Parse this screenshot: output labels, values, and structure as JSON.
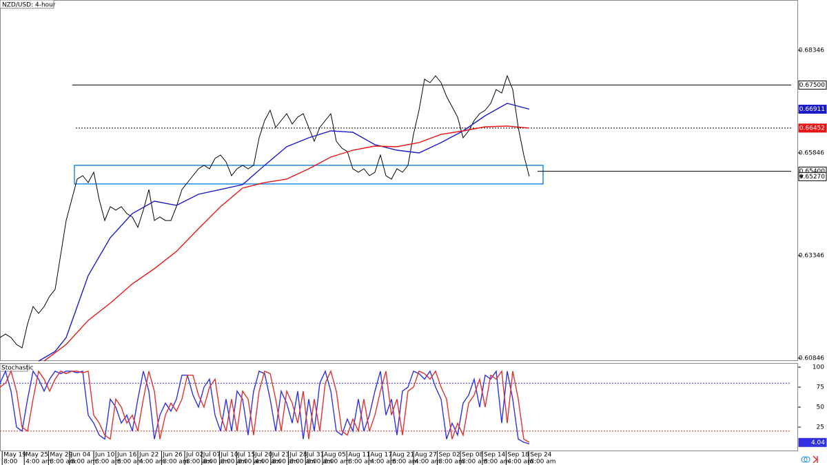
{
  "chart_data": [
    {
      "type": "line",
      "title": "NZD/USD: 4-hour",
      "xlim": [
        0,
        144.75
      ],
      "ylim": [
        0.60779,
        0.69571
      ],
      "yticks": [
        0.60846,
        0.63346,
        0.65846,
        0.68346
      ],
      "series": [
        {
          "name": "NZD/USD",
          "color": "#000000",
          "last_label": "0.65270",
          "values": [
            0.61349,
            0.61433,
            0.61349,
            0.61181,
            0.61097,
            0.61684,
            0.62104,
            0.61936,
            0.62104,
            0.62356,
            0.62523,
            0.63362,
            0.64201,
            0.64705,
            0.65208,
            0.65292,
            0.65124,
            0.65376,
            0.64705,
            0.64201,
            0.64537,
            0.64453,
            0.64537,
            0.64369,
            0.64285,
            0.64034,
            0.64453,
            0.64956,
            0.64201,
            0.64285,
            0.64201,
            0.64201,
            0.64537,
            0.64956,
            0.65124,
            0.65292,
            0.6546,
            0.65544,
            0.6546,
            0.65712,
            0.65795,
            0.65628,
            0.65292,
            0.6546,
            0.65544,
            0.6546,
            0.65544,
            0.66215,
            0.66634,
            0.66886,
            0.66467,
            0.66634,
            0.66802,
            0.66551,
            0.66718,
            0.66802,
            0.66467,
            0.66131,
            0.66467,
            0.66634,
            0.66802,
            0.66131,
            0.65963,
            0.65879,
            0.6546,
            0.65376,
            0.6546,
            0.65292,
            0.65376,
            0.65795,
            0.65292,
            0.65208,
            0.6546,
            0.65376,
            0.65544,
            0.66299,
            0.66886,
            0.67641,
            0.67557,
            0.67725,
            0.67557,
            0.67222,
            0.6697,
            0.66718,
            0.66215,
            0.66383,
            0.66634,
            0.66802,
            0.66886,
            0.67054,
            0.6739,
            0.67306,
            0.67725,
            0.6739,
            0.66467,
            0.65795,
            0.6527
          ]
        },
        {
          "color": "#1a1ac8",
          "x": [
            7,
            10,
            12,
            16,
            20,
            24,
            28,
            32,
            36,
            40,
            44,
            48,
            52,
            56,
            60,
            64,
            68,
            72,
            76,
            80,
            84,
            88,
            92,
            96
          ],
          "values": [
            0.60778,
            0.61013,
            0.61349,
            0.62859,
            0.63782,
            0.64369,
            0.64671,
            0.6457,
            0.64839,
            0.64956,
            0.65074,
            0.65544,
            0.65997,
            0.66215,
            0.66383,
            0.66349,
            0.66047,
            0.65913,
            0.65846,
            0.66097,
            0.66383,
            0.66752,
            0.67054,
            0.66911
          ]
        },
        {
          "color": "#e81414",
          "x": [
            8,
            12,
            16,
            20,
            24,
            28,
            32,
            36,
            40,
            44,
            48,
            52,
            56,
            60,
            64,
            68,
            72,
            76,
            80,
            84,
            88,
            92,
            96
          ],
          "values": [
            0.60778,
            0.61181,
            0.61768,
            0.62188,
            0.62658,
            0.63027,
            0.63446,
            0.64,
            0.64537,
            0.6499,
            0.65124,
            0.65208,
            0.6546,
            0.65745,
            0.65913,
            0.66014,
            0.65997,
            0.66097,
            0.66299,
            0.66383,
            0.66483,
            0.665,
            0.66452
          ]
        }
      ],
      "levels": [
        {
          "value": 0.675,
          "label": "0.67500",
          "from": 13.1,
          "style": "solid"
        },
        {
          "value": 0.66452,
          "from": 13.75,
          "style": "dotted"
        },
        {
          "value": 0.654,
          "label": "0.65400",
          "from": 97.5,
          "style": "solid"
        }
      ],
      "zone": {
        "x": [
          13.5,
          98.5
        ],
        "y": [
          0.65091,
          0.65544
        ],
        "color": "#1e88e5"
      }
    },
    {
      "type": "line",
      "title": "Stochastic",
      "xlim": [
        0,
        144.75
      ],
      "ylim": [
        -5.2,
        105.2
      ],
      "yticks": [
        25,
        50,
        75,
        100
      ],
      "levels": [
        {
          "value": 80,
          "color": "#3030c0"
        },
        {
          "value": 20,
          "color": "#e03030"
        }
      ],
      "xticks": [
        {
          "value": 0.4,
          "label": "May 19"
        },
        {
          "value": 4.4,
          "label": "May 25"
        },
        {
          "value": 8.8,
          "label": "May 29"
        },
        {
          "value": 12.6,
          "label": "Jun 04"
        },
        {
          "value": 17,
          "label": "Jun 10"
        },
        {
          "value": 21,
          "label": "Jun 16"
        },
        {
          "value": 25,
          "label": "Jun 22"
        },
        {
          "value": 29.3,
          "label": "Jun 26"
        },
        {
          "value": 33.5,
          "label": "Jul 02"
        },
        {
          "value": 36.6,
          "label": "Jul 07"
        },
        {
          "value": 39.8,
          "label": "Jul 10"
        },
        {
          "value": 42.9,
          "label": "Jul 15"
        },
        {
          "value": 46,
          "label": "Jul 20"
        },
        {
          "value": 49.1,
          "label": "Jul 23"
        },
        {
          "value": 52.3,
          "label": "Jul 28"
        },
        {
          "value": 55.4,
          "label": "Jul 31"
        },
        {
          "value": 58.5,
          "label": "Aug 05"
        },
        {
          "value": 62.9,
          "label": "Aug 11"
        },
        {
          "value": 66.9,
          "label": "Aug 17"
        },
        {
          "value": 70.9,
          "label": "Aug 21"
        },
        {
          "value": 75,
          "label": "Aug 27"
        },
        {
          "value": 79.3,
          "label": "Sep 02"
        },
        {
          "value": 83.5,
          "label": "Sep 08"
        },
        {
          "value": 87.5,
          "label": "Sep 14"
        },
        {
          "value": 91.8,
          "label": "Sep 18"
        },
        {
          "value": 95.9,
          "label": "Sep 24"
        }
      ],
      "time_labels": [
        "8:00",
        "4:00 am",
        "8:00 am",
        "8:00 am",
        "8:00 am",
        "8:00 am",
        "4:00 am",
        "8:00 am",
        "8:00 am",
        "8:00 am",
        "8:00 am",
        "8:00 am",
        "4:00 am",
        "8:00 am",
        "8:00 am",
        "8:00 am",
        "8:00 am",
        "8:00 am",
        "4:00 am",
        "8:00 am",
        "4:00 am",
        "8:00 am",
        "8:00 am",
        "8:00 am",
        "4:00 am",
        "8:00 am"
      ],
      "series": [
        {
          "color": "#3030e0",
          "values": [
            80,
            95,
            70,
            25,
            20,
            60,
            95,
            85,
            70,
            85,
            95,
            92,
            95,
            95,
            93,
            95,
            40,
            30,
            15,
            10,
            60,
            50,
            30,
            40,
            20,
            60,
            95,
            70,
            10,
            40,
            55,
            45,
            60,
            90,
            90,
            65,
            50,
            75,
            85,
            40,
            20,
            60,
            20,
            70,
            60,
            15,
            70,
            95,
            92,
            60,
            20,
            70,
            55,
            30,
            70,
            10,
            60,
            20,
            80,
            95,
            70,
            20,
            15,
            35,
            20,
            60,
            20,
            40,
            70,
            95,
            40,
            60,
            15,
            70,
            75,
            95,
            92,
            85,
            95,
            75,
            60,
            10,
            30,
            15,
            55,
            65,
            85,
            50,
            90,
            85,
            95,
            30,
            95,
            60,
            10,
            6,
            4.04
          ]
        },
        {
          "color": "#e03030",
          "values": [
            75,
            80,
            95,
            70,
            25,
            20,
            60,
            95,
            85,
            70,
            85,
            95,
            92,
            95,
            95,
            93,
            95,
            40,
            30,
            15,
            10,
            60,
            50,
            30,
            40,
            20,
            60,
            95,
            70,
            10,
            40,
            55,
            45,
            60,
            90,
            90,
            65,
            50,
            75,
            85,
            40,
            20,
            60,
            20,
            70,
            60,
            15,
            70,
            95,
            92,
            60,
            20,
            70,
            55,
            30,
            70,
            10,
            60,
            20,
            80,
            95,
            70,
            20,
            15,
            35,
            20,
            60,
            20,
            40,
            70,
            95,
            40,
            60,
            15,
            70,
            75,
            95,
            92,
            85,
            95,
            75,
            60,
            10,
            30,
            15,
            55,
            65,
            85,
            50,
            90,
            85,
            95,
            30,
            95,
            60,
            10,
            6
          ]
        }
      ]
    }
  ]
}
